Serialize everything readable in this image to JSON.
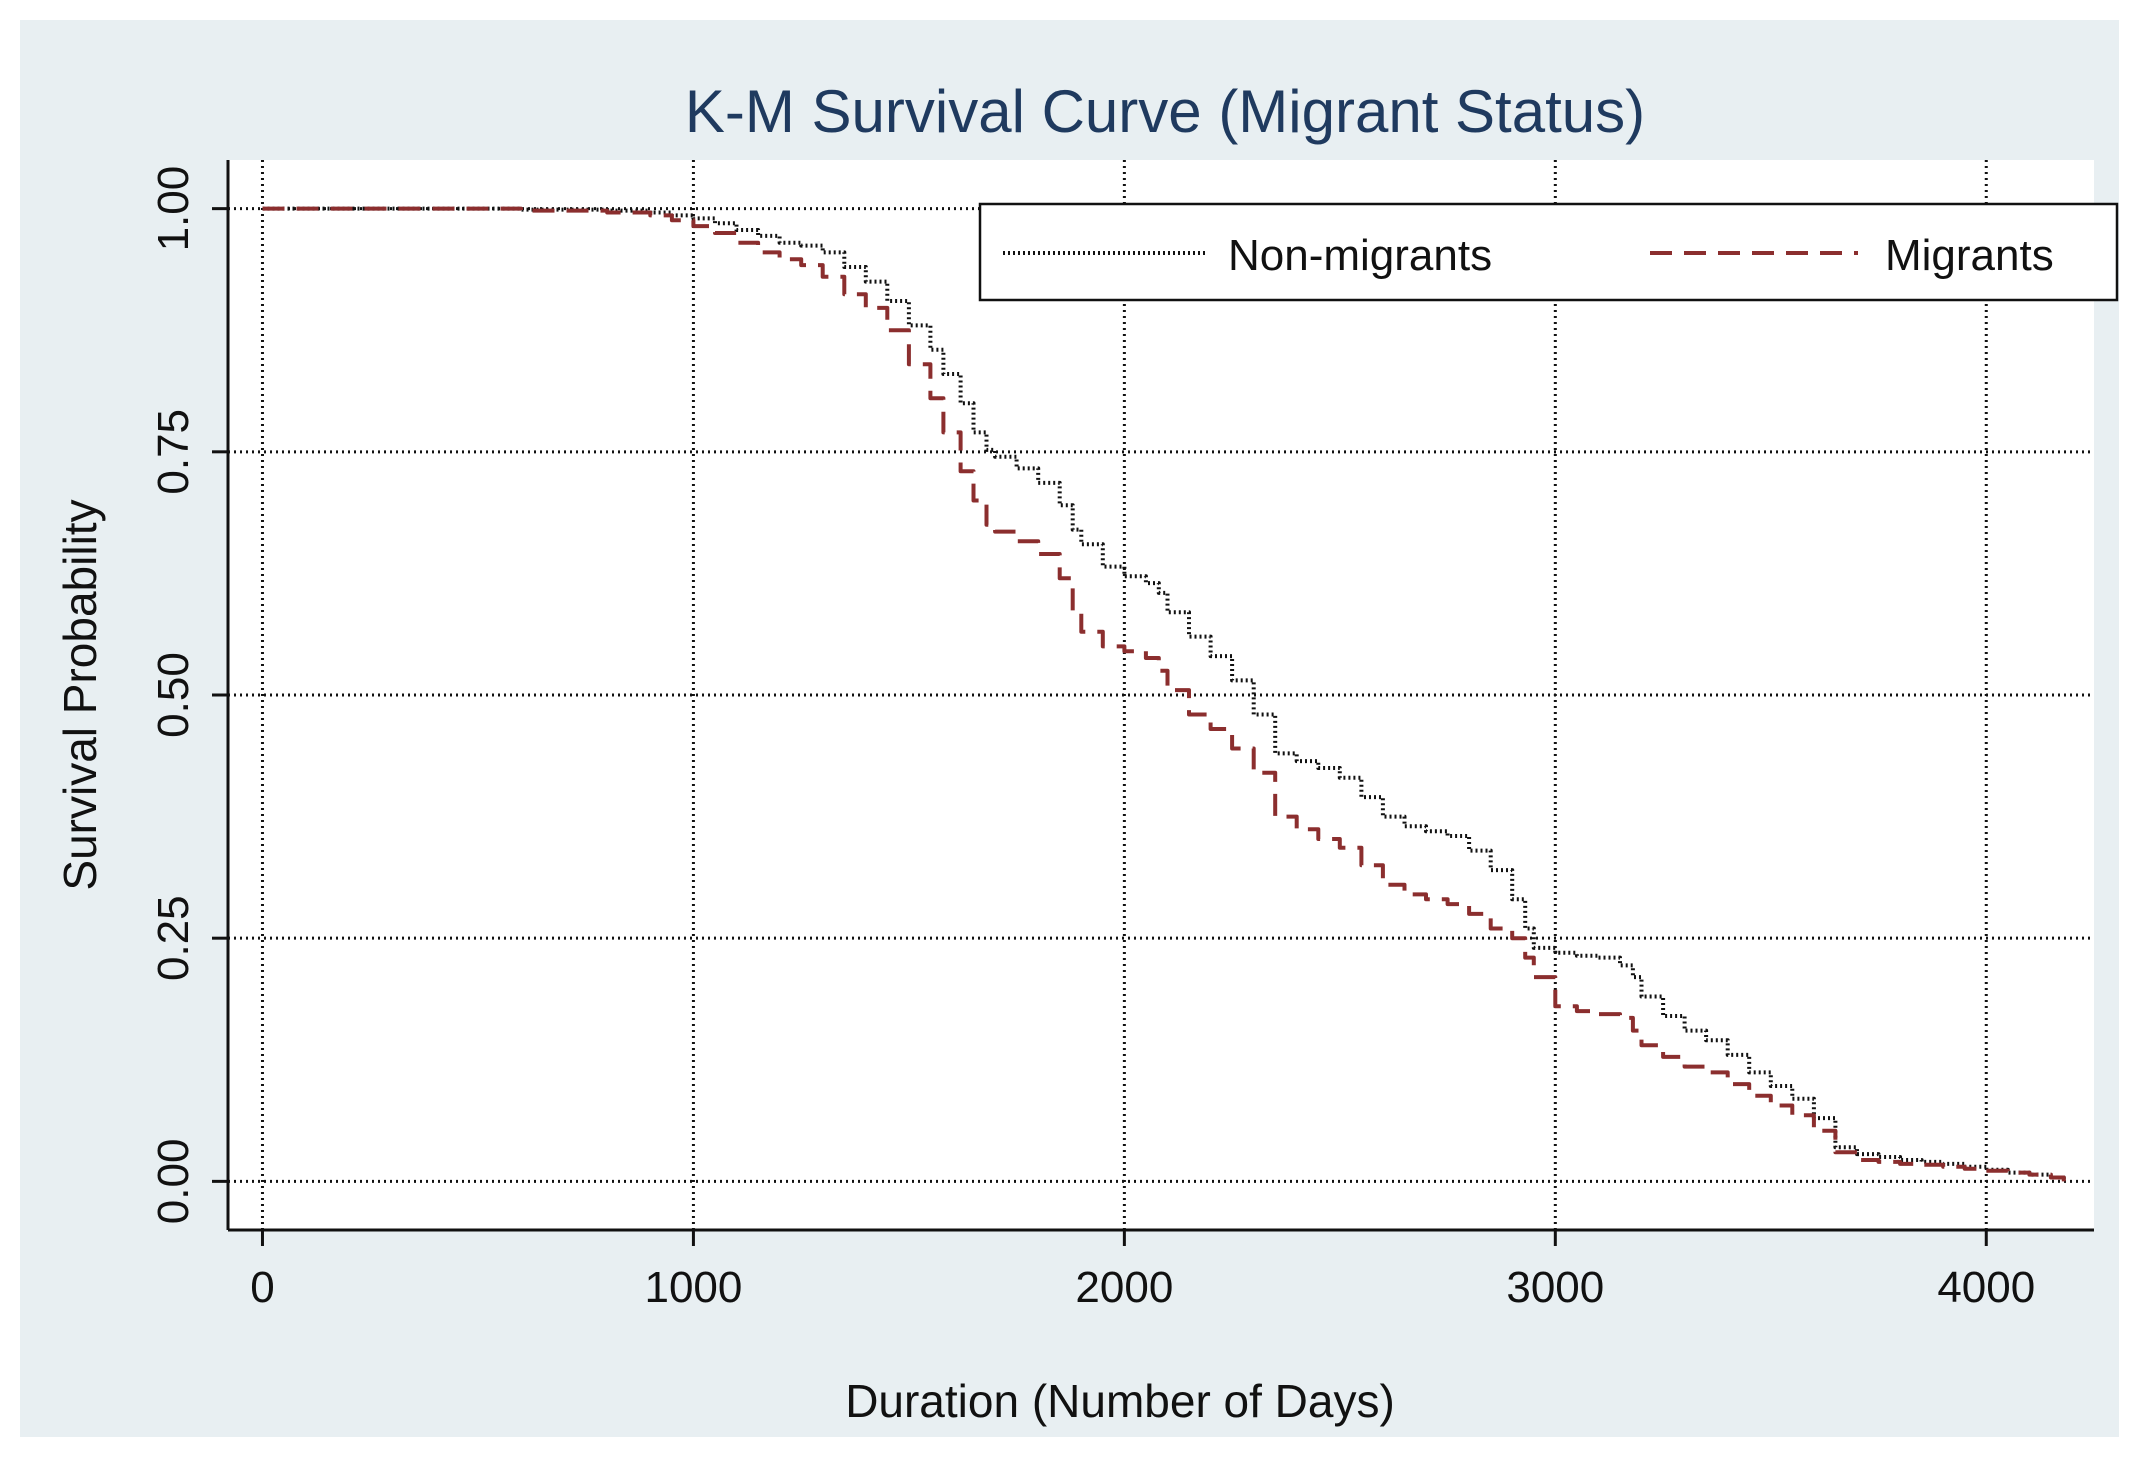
{
  "chart_data": {
    "type": "line",
    "title": "K-M Survival Curve (Migrant Status)",
    "xlabel": "Duration (Number of Days)",
    "ylabel": "Survival Probability",
    "xlim": [
      -80,
      4250
    ],
    "ylim": [
      -0.05,
      1.05
    ],
    "xticks": [
      0,
      1000,
      2000,
      3000,
      4000
    ],
    "xtick_labels": [
      "0",
      "1000",
      "2000",
      "3000",
      "4000"
    ],
    "yticks": [
      0,
      0.25,
      0.5,
      0.75,
      1
    ],
    "ytick_labels": [
      "0.00",
      "0.25",
      "0.50",
      "0.75",
      "1.00"
    ],
    "grid": true,
    "legend_position": "top-right",
    "colors": {
      "outer_background": "#e8eff2",
      "plot_background": "#ffffff",
      "title": "#1f3a5f",
      "non_migrants": "#111111",
      "migrants": "#8b2e2e",
      "grid": "#111111"
    },
    "series": [
      {
        "name": "Non-migrants",
        "style": "dotted",
        "x": [
          0,
          200,
          400,
          600,
          800,
          900,
          950,
          1000,
          1050,
          1100,
          1150,
          1200,
          1250,
          1300,
          1350,
          1400,
          1450,
          1500,
          1550,
          1580,
          1620,
          1650,
          1680,
          1700,
          1750,
          1800,
          1850,
          1880,
          1900,
          1950,
          2000,
          2050,
          2080,
          2100,
          2150,
          2200,
          2250,
          2300,
          2350,
          2400,
          2450,
          2500,
          2550,
          2600,
          2650,
          2700,
          2750,
          2800,
          2850,
          2900,
          2930,
          2950,
          3000,
          3050,
          3100,
          3150,
          3180,
          3200,
          3250,
          3300,
          3350,
          3400,
          3450,
          3500,
          3550,
          3600,
          3650,
          3700,
          3750,
          3800,
          3850,
          3900,
          3950,
          4000,
          4050,
          4100,
          4150,
          4180
        ],
        "y": [
          1.0,
          1.0,
          1.0,
          0.999,
          0.998,
          0.996,
          0.993,
          0.99,
          0.985,
          0.978,
          0.972,
          0.965,
          0.962,
          0.955,
          0.94,
          0.925,
          0.905,
          0.88,
          0.855,
          0.83,
          0.8,
          0.77,
          0.752,
          0.745,
          0.733,
          0.718,
          0.695,
          0.67,
          0.655,
          0.632,
          0.622,
          0.615,
          0.605,
          0.585,
          0.56,
          0.54,
          0.515,
          0.48,
          0.44,
          0.432,
          0.425,
          0.415,
          0.395,
          0.375,
          0.365,
          0.36,
          0.355,
          0.34,
          0.32,
          0.29,
          0.26,
          0.24,
          0.235,
          0.232,
          0.23,
          0.222,
          0.21,
          0.19,
          0.17,
          0.155,
          0.145,
          0.13,
          0.112,
          0.098,
          0.085,
          0.065,
          0.035,
          0.028,
          0.025,
          0.022,
          0.02,
          0.018,
          0.015,
          0.012,
          0.009,
          0.007,
          0.004,
          0.0
        ]
      },
      {
        "name": "Migrants",
        "style": "dashed",
        "x": [
          0,
          200,
          400,
          600,
          800,
          900,
          950,
          1000,
          1050,
          1100,
          1150,
          1200,
          1250,
          1300,
          1350,
          1400,
          1450,
          1500,
          1550,
          1580,
          1620,
          1650,
          1680,
          1700,
          1750,
          1800,
          1850,
          1880,
          1900,
          1950,
          2000,
          2050,
          2080,
          2100,
          2150,
          2200,
          2250,
          2300,
          2350,
          2400,
          2450,
          2500,
          2550,
          2600,
          2650,
          2700,
          2750,
          2800,
          2850,
          2900,
          2930,
          2950,
          3000,
          3050,
          3100,
          3150,
          3180,
          3200,
          3250,
          3300,
          3350,
          3400,
          3450,
          3500,
          3550,
          3600,
          3650,
          3700,
          3750,
          3800,
          3850,
          3900,
          3950,
          4000,
          4050,
          4100,
          4150,
          4180
        ],
        "y": [
          1.0,
          1.0,
          1.0,
          0.998,
          0.996,
          0.993,
          0.988,
          0.982,
          0.975,
          0.965,
          0.955,
          0.948,
          0.942,
          0.93,
          0.912,
          0.898,
          0.875,
          0.84,
          0.805,
          0.77,
          0.73,
          0.7,
          0.675,
          0.668,
          0.658,
          0.645,
          0.62,
          0.585,
          0.565,
          0.55,
          0.545,
          0.538,
          0.525,
          0.505,
          0.48,
          0.465,
          0.445,
          0.42,
          0.375,
          0.362,
          0.352,
          0.343,
          0.325,
          0.305,
          0.295,
          0.29,
          0.285,
          0.275,
          0.26,
          0.25,
          0.23,
          0.21,
          0.18,
          0.175,
          0.172,
          0.168,
          0.155,
          0.14,
          0.128,
          0.118,
          0.112,
          0.1,
          0.088,
          0.078,
          0.068,
          0.052,
          0.03,
          0.022,
          0.02,
          0.018,
          0.017,
          0.015,
          0.013,
          0.011,
          0.009,
          0.007,
          0.004,
          0.0
        ]
      }
    ]
  }
}
